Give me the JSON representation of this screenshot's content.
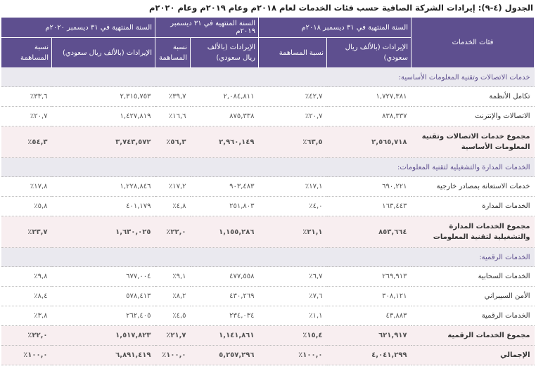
{
  "title": "الجدول (٤-٩): إيرادات الشركة الصافية حسب فئات الخدمات لعام ٢٠١٨م وعام ٢٠١٩م وعام ٢٠٢٠م",
  "header": {
    "category": "فئات الخدمات",
    "years": [
      "السنة المنتهية في ٣١ ديسمبر ٢٠١٨م",
      "السنة المنتهية في ٣١ ديسمبر ٢٠١٩م",
      "السنة المنتهية في ٣١ ديسمبر ٢٠٢٠م"
    ],
    "revenue": "الإيرادات (بالألف ريال سعودي)",
    "share": "نسبة المساهمة"
  },
  "sections": [
    {
      "title": "خدمات الاتصالات وتقنية المعلومات الأساسية:",
      "rows": [
        {
          "label": "تكامل الأنظمة",
          "values": [
            "١,٧٢٧,٣٨١",
            "٤٢,٧٪",
            "٢,٠٨٤,٨١١",
            "٣٩,٧٪",
            "٢,٣١٥,٧٥٣",
            "٣٣,٦٪"
          ]
        },
        {
          "label": "الاتصالات والإنترنت",
          "values": [
            "٨٣٨,٣٣٧",
            "٢٠,٧٪",
            "٨٧٥,٣٣٨",
            "١٦,٦٪",
            "١,٤٢٧,٨١٩",
            "٢٠,٧٪"
          ]
        }
      ],
      "total": {
        "label": "مجموع خدمات الاتصالات وتقنية المعلومات الأساسية",
        "values": [
          "٢,٥٦٥,٧١٨",
          "٦٣,٥٪",
          "٢,٩٦٠,١٤٩",
          "٥٦,٣٪",
          "٣,٧٤٣,٥٧٢",
          "٥٤,٣٪"
        ]
      }
    },
    {
      "title": "الخدمات المدارة والتشغيلية لتقنية المعلومات:",
      "rows": [
        {
          "label": "خدمات الاستعانة بمصادر خارجية",
          "values": [
            "٦٩٠,٢٢١",
            "١٧,١٪",
            "٩٠٣,٤٨٣",
            "١٧,٢٪",
            "١,٢٢٨,٨٤٦",
            "١٧,٨٪"
          ]
        },
        {
          "label": "الخدمات المدارة",
          "values": [
            "١٦٣,٤٤٣",
            "٤,٠٪",
            "٢٥١,٨٠٣",
            "٤,٨٪",
            "٤٠١,١٧٩",
            "٥,٨٪"
          ]
        }
      ],
      "total": {
        "label": "مجموع الخدمات المدارة والتشغيلية لتقنية المعلومات",
        "values": [
          "٨٥٣,٦٦٤",
          "٢١,١٪",
          "١,١٥٥,٢٨٦",
          "٢٢,٠٪",
          "١,٦٣٠,٠٢٥",
          "٢٣,٧٪"
        ]
      }
    },
    {
      "title": "الخدمات الرقمية:",
      "rows": [
        {
          "label": "الخدمات السحابية",
          "values": [
            "٢٦٩,٩١٣",
            "٦,٧٪",
            "٤٧٧,٥٥٨",
            "٩,١٪",
            "٦٧٧,٠٠٤",
            "٩,٨٪"
          ]
        },
        {
          "label": "الأمن السيبراني",
          "values": [
            "٣٠٨,١٢١",
            "٧,٦٪",
            "٤٣٠,٢٦٩",
            "٨,٢٪",
            "٥٧٨,٤١٣",
            "٨,٤٪"
          ]
        },
        {
          "label": "الخدمات الرقمية",
          "values": [
            "٤٣,٨٨٣",
            "١,١٪",
            "٢٣٤,٠٣٤",
            "٤,٥٪",
            "٢٦٢,٤٠٥",
            "٣,٨٪"
          ]
        }
      ],
      "total": {
        "label": "مجموع الخدمات الرقمية",
        "values": [
          "٦٢١,٩١٧",
          "١٥,٤٪",
          "١,١٤١,٨٦١",
          "٢١,٧٪",
          "١,٥١٧,٨٢٣",
          "٢٢,٠٪"
        ]
      }
    }
  ],
  "grand_total": {
    "label": "الإجمالي",
    "values": [
      "٤,٠٤١,٢٩٩",
      "١٠٠,٠٪",
      "٥,٢٥٧,٢٩٦",
      "١٠٠,٠٪",
      "٦,٨٩١,٤١٩",
      "١٠٠,٠٪"
    ]
  }
}
